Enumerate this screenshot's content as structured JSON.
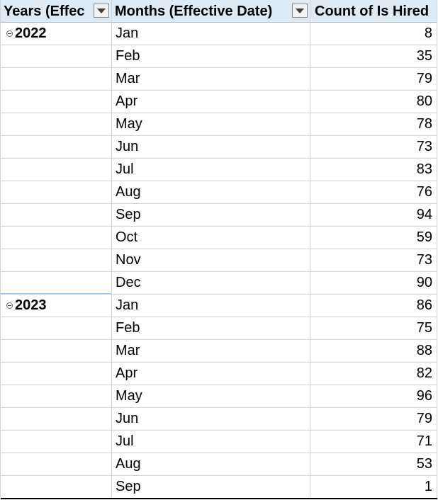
{
  "pivot": {
    "headers": {
      "years": "Years (Effec",
      "months": "Months (Effective Date)",
      "count": "Count of Is Hired"
    },
    "groups": [
      {
        "year": "2022",
        "rows": [
          {
            "month": "Jan",
            "count": "8"
          },
          {
            "month": "Feb",
            "count": "35"
          },
          {
            "month": "Mar",
            "count": "79"
          },
          {
            "month": "Apr",
            "count": "80"
          },
          {
            "month": "May",
            "count": "78"
          },
          {
            "month": "Jun",
            "count": "73"
          },
          {
            "month": "Jul",
            "count": "83"
          },
          {
            "month": "Aug",
            "count": "76"
          },
          {
            "month": "Sep",
            "count": "94"
          },
          {
            "month": "Oct",
            "count": "59"
          },
          {
            "month": "Nov",
            "count": "73"
          },
          {
            "month": "Dec",
            "count": "90"
          }
        ]
      },
      {
        "year": "2023",
        "rows": [
          {
            "month": "Jan",
            "count": "86"
          },
          {
            "month": "Feb",
            "count": "75"
          },
          {
            "month": "Mar",
            "count": "88"
          },
          {
            "month": "Apr",
            "count": "82"
          },
          {
            "month": "May",
            "count": "96"
          },
          {
            "month": "Jun",
            "count": "79"
          },
          {
            "month": "Jul",
            "count": "71"
          },
          {
            "month": "Aug",
            "count": "53"
          },
          {
            "month": "Sep",
            "count": "1"
          }
        ]
      }
    ]
  },
  "icons": {
    "filter": "chevron-down-icon",
    "collapse": "collapse-icon"
  },
  "colors": {
    "header_background": "#ddebf7",
    "gridline": "#d4d4d4",
    "group_divider": "#9bc2e6"
  }
}
